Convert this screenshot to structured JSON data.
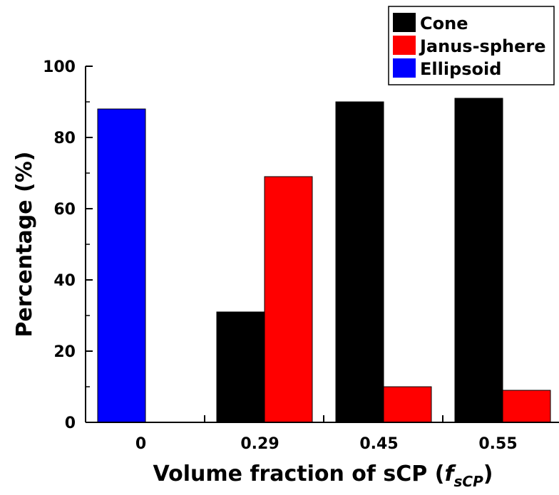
{
  "chart_data": {
    "type": "bar",
    "categories": [
      "0",
      "0.29",
      "0.45",
      "0.55"
    ],
    "series": [
      {
        "name": "Cone",
        "color": "#000000",
        "values": [
          0,
          31,
          90,
          91
        ]
      },
      {
        "name": "Janus-sphere",
        "color": "#ff0000",
        "values": [
          0,
          69,
          10,
          9
        ]
      },
      {
        "name": "Ellipsoid",
        "color": "#0000ff",
        "values": [
          88,
          0,
          0,
          0
        ]
      }
    ],
    "xlabel_main": "Volume fraction of sCP (",
    "xlabel_symbol": "f",
    "xlabel_subscript": "sCP",
    "xlabel_close": ")",
    "ylabel": "Percentage (%)",
    "ylim": [
      0,
      100
    ],
    "yticks": [
      "0",
      "20",
      "40",
      "60",
      "80",
      "100"
    ],
    "legend_position": "top-right"
  }
}
